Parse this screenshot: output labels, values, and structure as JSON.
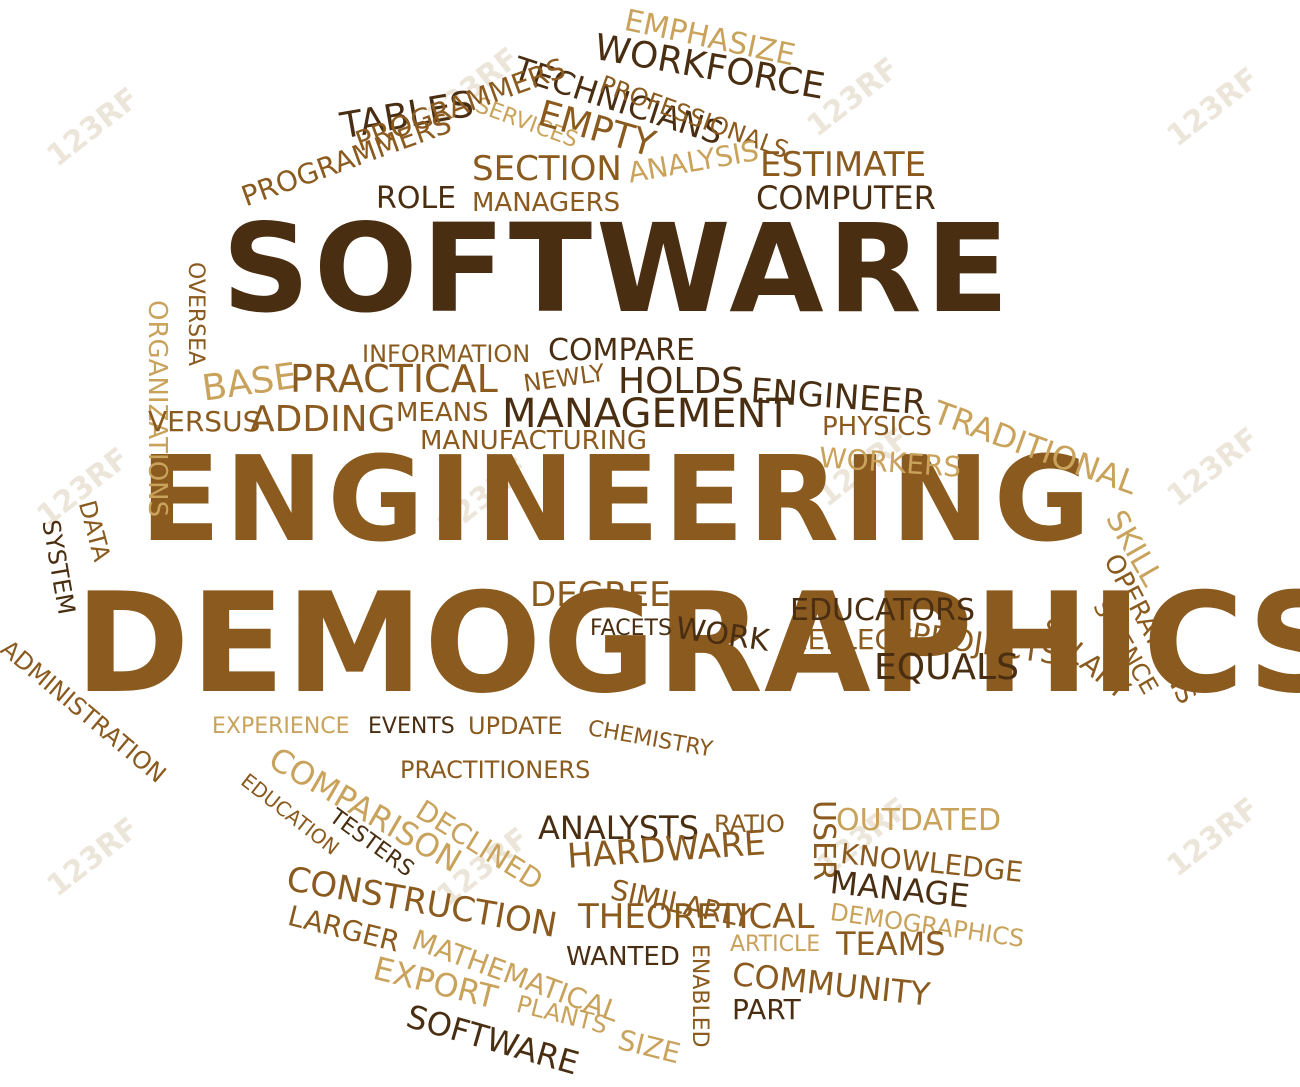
{
  "watermark": "123RF",
  "colors": {
    "dark": "#4a2e12",
    "mid": "#8a5a1e",
    "light": "#c9a25b"
  },
  "title_words": [
    "SOFTWARE",
    "ENGINEERING",
    "DEMOGRAPHICS"
  ],
  "words": {
    "emphasize": "EMPHASIZE",
    "workforce": "WORKFORCE",
    "technicians": "TECHNICIANS",
    "professionals": "PROFESSIONALS",
    "services": "SERVICES",
    "empty": "EMPTY",
    "tables": "TABLES",
    "programmers_top": "PROGRAMMERS",
    "section": "SECTION",
    "estimate": "ESTIMATE",
    "programmers": "PROGRAMMERS",
    "analysis": "ANALYSIS",
    "computer": "COMPUTER",
    "role": "ROLE",
    "managers": "MANAGERS",
    "oversea": "OVERSEA",
    "organizations": "ORGANIZATIONS",
    "information": "INFORMATION",
    "compare": "COMPARE",
    "base": "BASE",
    "practical": "PRACTICAL",
    "newly": "NEWLY",
    "holds": "HOLDS",
    "engineer": "ENGINEER",
    "versus": "VERSUS",
    "adding": "ADDING",
    "means": "MEANS",
    "management": "MANAGEMENT",
    "physics": "PHYSICS",
    "traditional": "TRADITIONAL",
    "manufacturing": "MANUFACTURING",
    "workers": "WORKERS",
    "data": "DATA",
    "system": "SYSTEM",
    "skill": "SKILL",
    "operations": "OPERATIONS",
    "science": "SCIENCE",
    "degree": "DEGREE",
    "educators": "EDUCATORS",
    "facets": "FACETS",
    "work": "WORK",
    "reflect": "REFLECT",
    "projects": "PROJECTS",
    "salary": "SALARY",
    "equals": "EQUALS",
    "administration": "ADMINISTRATION",
    "experience": "EXPERIENCE",
    "events": "EVENTS",
    "update": "UPDATE",
    "chemistry": "CHEMISTRY",
    "comparison": "COMPARISON",
    "practitioners": "PRACTITIONERS",
    "education": "EDUCATION",
    "declined": "DECLINED",
    "testers": "TESTERS",
    "analysts": "ANALYSTS",
    "ratio": "RATIO",
    "user": "USER",
    "outdated": "OUTDATED",
    "knowledge": "KNOWLEDGE",
    "hardware": "HARDWARE",
    "similarly": "SIMILARLY",
    "manage": "MANAGE",
    "construction": "CONSTRUCTION",
    "theoretical": "THEORETICAL",
    "demographics_small": "DEMOGRAPHICS",
    "larger": "LARGER",
    "article": "ARTICLE",
    "teams": "TEAMS",
    "mathematical": "MATHEMATICAL",
    "wanted": "WANTED",
    "enabled": "ENABLED",
    "community": "COMMUNITY",
    "export": "EXPORT",
    "plants": "PLANTS",
    "part": "PART",
    "size": "SIZE",
    "software_small": "SOFTWARE"
  }
}
